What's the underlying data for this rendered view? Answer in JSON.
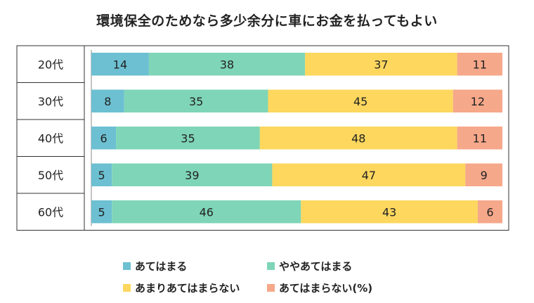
{
  "title": "環境保全のためなら多少余分に車にお金を払ってもよい",
  "chart_data": {
    "type": "bar",
    "orientation": "horizontal",
    "stacked": true,
    "title": "環境保全のためなら多少余分に車にお金を払ってもよい",
    "unit": "(%)",
    "categories": [
      "20代",
      "30代",
      "40代",
      "50代",
      "60代"
    ],
    "series": [
      {
        "name": "あてはまる",
        "color": "#6cc0d2",
        "values": [
          14,
          8,
          6,
          5,
          5
        ]
      },
      {
        "name": "ややあてはまる",
        "color": "#7fd5b7",
        "values": [
          38,
          35,
          35,
          39,
          46
        ]
      },
      {
        "name": "あまりあてはまらない",
        "color": "#fdd75e",
        "values": [
          37,
          45,
          48,
          47,
          43
        ]
      },
      {
        "name": "あてはまらない",
        "color": "#f6a88a",
        "values": [
          11,
          12,
          11,
          9,
          6
        ]
      }
    ],
    "xlim": [
      0,
      100
    ],
    "legend_position": "bottom",
    "grid": false
  },
  "legend": {
    "items": [
      "あてはまる",
      "ややあてはまる",
      "あまりあてはまらない",
      "あてはまらない"
    ],
    "suffix": "(%)"
  }
}
